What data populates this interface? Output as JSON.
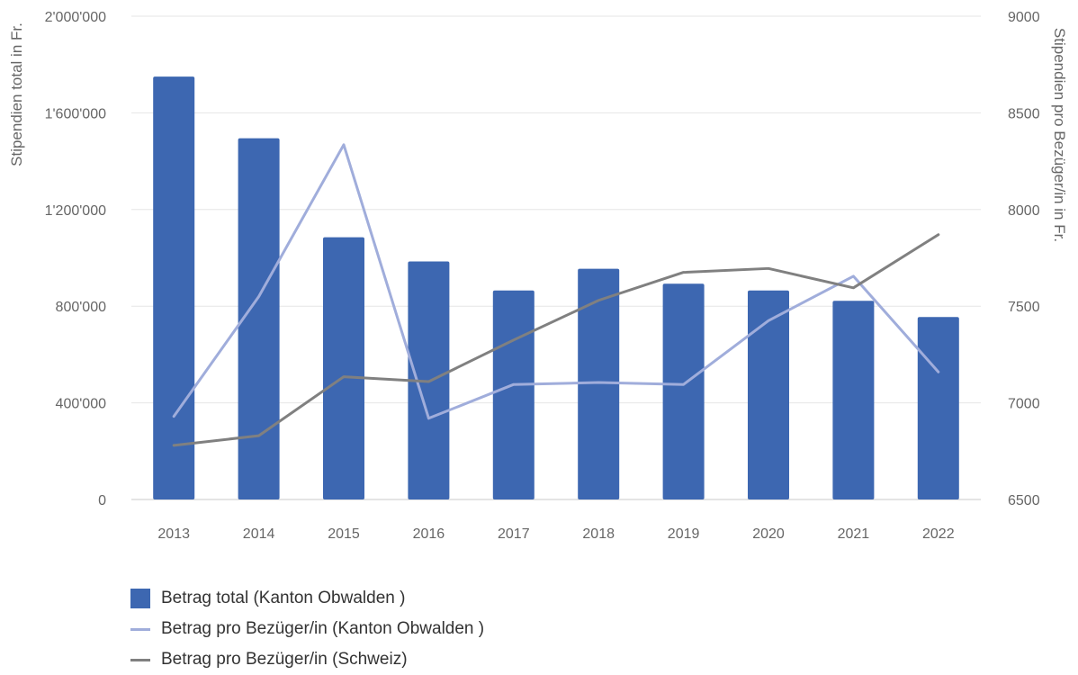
{
  "chart_data": {
    "type": "bar",
    "categories": [
      "2013",
      "2014",
      "2015",
      "2016",
      "2017",
      "2018",
      "2019",
      "2020",
      "2021",
      "2022"
    ],
    "y_left": {
      "label": "Stipendien total in Fr.",
      "lim": [
        0,
        2000000
      ],
      "ticks": [
        0,
        400000,
        800000,
        1200000,
        1600000,
        2000000
      ],
      "tick_labels": [
        "0",
        "400'000",
        "800'000",
        "1'200'000",
        "1'600'000",
        "2'000'000"
      ]
    },
    "y_right": {
      "label": "Stipendien pro Bezüger/in in Fr.",
      "lim": [
        6500,
        9000
      ],
      "ticks": [
        6500,
        7000,
        7500,
        8000,
        8500,
        9000
      ],
      "tick_labels": [
        "6500",
        "7000",
        "7500",
        "8000",
        "8500",
        "9000"
      ]
    },
    "grid": true,
    "legend_position": "bottom-left",
    "series": [
      {
        "name": "Betrag total (Kanton Obwalden )",
        "type": "bar",
        "axis": "left",
        "color": "#3d67b1",
        "values": [
          1750000,
          1495000,
          1085000,
          985000,
          865000,
          955000,
          893000,
          865000,
          822000,
          755000
        ]
      },
      {
        "name": "Betrag pro Bezüger/in (Kanton Obwalden )",
        "type": "line",
        "axis": "right",
        "color": "#a0addb",
        "values": [
          6930,
          7550,
          8335,
          6920,
          7095,
          7105,
          7095,
          7425,
          7655,
          7160
        ]
      },
      {
        "name": "Betrag pro Bezüger/in (Schweiz)",
        "type": "line",
        "axis": "right",
        "color": "#808080",
        "values": [
          6780,
          6830,
          7135,
          7110,
          7325,
          7530,
          7675,
          7695,
          7595,
          7870
        ]
      }
    ]
  }
}
